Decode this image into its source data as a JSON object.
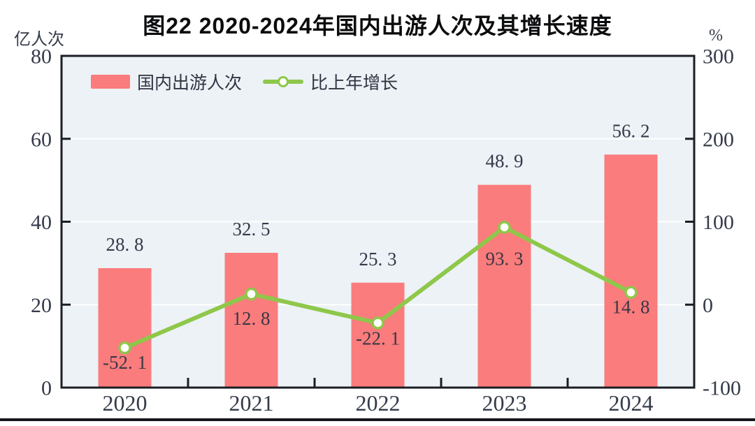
{
  "figure": {
    "title": "图22  2020-2024年国内出游人次及其增长速度",
    "left_axis_unit": "亿人次",
    "right_axis_unit": "%"
  },
  "chart_data": {
    "type": "bar+line",
    "categories": [
      "2020",
      "2021",
      "2022",
      "2023",
      "2024"
    ],
    "series": [
      {
        "name": "国内出游人次",
        "type": "bar",
        "axis": "left",
        "values": [
          28.8,
          32.5,
          25.3,
          48.9,
          56.2
        ],
        "labels": [
          "28. 8",
          "32. 5",
          "25. 3",
          "48. 9",
          "56. 2"
        ],
        "color": "#FA7C7C"
      },
      {
        "name": "比上年增长",
        "type": "line",
        "axis": "right",
        "values": [
          -52.1,
          12.8,
          -22.1,
          93.3,
          14.8
        ],
        "labels": [
          "-52. 1",
          "12. 8",
          "-22. 1",
          "93. 3",
          "14. 8"
        ],
        "color": "#8FC74A",
        "marker": "circle-white-fill"
      }
    ],
    "left_axis": {
      "label": "亿人次",
      "min": 0,
      "max": 80,
      "ticks": [
        0,
        20,
        40,
        60,
        80
      ]
    },
    "right_axis": {
      "label": "%",
      "min": -100,
      "max": 300,
      "ticks": [
        -100,
        0,
        100,
        200,
        300
      ]
    },
    "grid": true,
    "legend_position": "top-left-inside"
  },
  "colors": {
    "bar": "#FA7C7C",
    "line": "#8FC74A",
    "plot_background": "#ECF2F6",
    "gridline": "#FFFFFF",
    "axis": "#1B1E24",
    "tick_text": "#353B4A",
    "value_text": "#3A3744",
    "title_text": "#0B0C0E",
    "bottom_rule": "#15171B"
  }
}
